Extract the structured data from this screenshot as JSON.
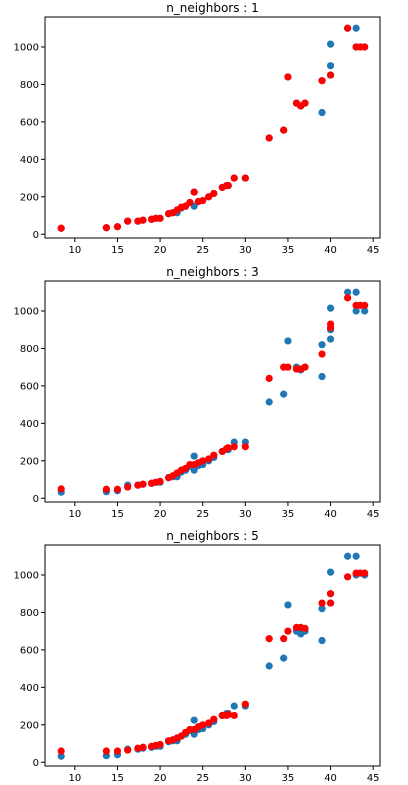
{
  "colors": {
    "actual": "#1f77b4",
    "predicted": "#ff0000"
  },
  "chart_data": [
    {
      "type": "scatter",
      "title": "n_neighbors : 1",
      "xlim": [
        6.5,
        45.8
      ],
      "ylim": [
        -20,
        1160
      ],
      "xticks": [
        10,
        15,
        20,
        25,
        30,
        35,
        40,
        45
      ],
      "yticks": [
        0,
        200,
        400,
        600,
        800,
        1000
      ],
      "series": [
        {
          "color": "#1f77b4",
          "x": [
            8.4,
            13.7,
            15.0,
            16.2,
            17.4,
            18.0,
            19.0,
            19.5,
            20.0,
            21.0,
            21.5,
            22.0,
            22.5,
            23.0,
            23.5,
            24.0,
            24.0,
            24.5,
            25.0,
            25.7,
            26.3,
            27.3,
            27.8,
            28.0,
            28.7,
            30.0,
            32.8,
            34.5,
            35.0,
            36.0,
            36.5,
            37.0,
            39.0,
            39.0,
            40.0,
            40.0,
            40.0,
            42.0,
            43.0,
            43.0,
            43.5,
            44.0
          ],
          "y": [
            32,
            35,
            40,
            70,
            70,
            75,
            80,
            85,
            85,
            110,
            115,
            115,
            140,
            150,
            170,
            150,
            225,
            175,
            180,
            200,
            218,
            250,
            260,
            260,
            300,
            300,
            514,
            556,
            840,
            700,
            685,
            700,
            650,
            820,
            850,
            900,
            1015,
            1100,
            1000,
            1100,
            1000,
            1000
          ]
        },
        {
          "color": "#ff0000",
          "x": [
            8.4,
            13.7,
            15.0,
            16.2,
            17.4,
            18.0,
            19.0,
            19.5,
            20.0,
            21.0,
            21.5,
            22.0,
            22.5,
            23.0,
            23.5,
            24.0,
            24.5,
            25.0,
            25.7,
            26.3,
            27.3,
            27.8,
            28.0,
            28.7,
            30.0,
            32.8,
            34.5,
            35.0,
            36.0,
            36.5,
            37.0,
            39.0,
            40.0,
            42.0,
            43.0,
            43.5,
            44.0
          ],
          "y": [
            32,
            35,
            40,
            70,
            70,
            75,
            80,
            85,
            85,
            110,
            115,
            130,
            145,
            150,
            170,
            225,
            175,
            180,
            200,
            218,
            250,
            260,
            260,
            300,
            300,
            514,
            556,
            840,
            700,
            685,
            700,
            820,
            850,
            1100,
            1000,
            1000,
            1000
          ]
        }
      ]
    },
    {
      "type": "scatter",
      "title": "n_neighbors : 3",
      "xlim": [
        6.5,
        45.8
      ],
      "ylim": [
        -20,
        1160
      ],
      "xticks": [
        10,
        15,
        20,
        25,
        30,
        35,
        40,
        45
      ],
      "yticks": [
        0,
        200,
        400,
        600,
        800,
        1000
      ],
      "series": [
        {
          "color": "#1f77b4",
          "x": [
            8.4,
            13.7,
            15.0,
            16.2,
            17.4,
            18.0,
            19.0,
            19.5,
            20.0,
            21.0,
            21.5,
            22.0,
            22.5,
            23.0,
            23.5,
            24.0,
            24.0,
            24.5,
            25.0,
            25.7,
            26.3,
            27.3,
            27.8,
            28.0,
            28.7,
            30.0,
            32.8,
            34.5,
            35.0,
            36.0,
            36.5,
            37.0,
            39.0,
            39.0,
            40.0,
            40.0,
            40.0,
            42.0,
            43.0,
            43.0,
            44.0
          ],
          "y": [
            32,
            35,
            40,
            70,
            70,
            75,
            80,
            85,
            85,
            110,
            115,
            115,
            140,
            150,
            170,
            150,
            225,
            175,
            180,
            200,
            218,
            250,
            260,
            260,
            300,
            300,
            514,
            556,
            840,
            700,
            685,
            700,
            650,
            820,
            850,
            900,
            1015,
            1100,
            1000,
            1100,
            1000
          ]
        },
        {
          "color": "#ff0000",
          "x": [
            8.4,
            13.7,
            15.0,
            16.2,
            17.4,
            18.0,
            19.0,
            19.5,
            20.0,
            21.0,
            21.5,
            22.0,
            22.5,
            23.0,
            23.5,
            24.0,
            24.5,
            25.0,
            25.7,
            26.3,
            27.3,
            27.8,
            28.0,
            28.7,
            30.0,
            32.8,
            34.5,
            35.0,
            36.0,
            36.5,
            37.0,
            39.0,
            40.0,
            40.0,
            42.0,
            43.0,
            43.5,
            44.0
          ],
          "y": [
            50,
            48,
            48,
            60,
            70,
            75,
            80,
            85,
            90,
            110,
            120,
            135,
            150,
            160,
            180,
            180,
            190,
            200,
            210,
            230,
            250,
            265,
            270,
            275,
            275,
            640,
            700,
            700,
            690,
            690,
            700,
            770,
            910,
            930,
            1070,
            1030,
            1030,
            1030
          ]
        }
      ]
    },
    {
      "type": "scatter",
      "title": "n_neighbors : 5",
      "xlim": [
        6.5,
        45.8
      ],
      "ylim": [
        -20,
        1160
      ],
      "xticks": [
        10,
        15,
        20,
        25,
        30,
        35,
        40,
        45
      ],
      "yticks": [
        0,
        200,
        400,
        600,
        800,
        1000
      ],
      "series": [
        {
          "color": "#1f77b4",
          "x": [
            8.4,
            13.7,
            15.0,
            16.2,
            17.4,
            18.0,
            19.0,
            19.5,
            20.0,
            21.0,
            21.5,
            22.0,
            22.5,
            23.0,
            23.5,
            24.0,
            24.0,
            24.5,
            25.0,
            25.7,
            26.3,
            27.3,
            27.8,
            28.0,
            28.7,
            30.0,
            32.8,
            34.5,
            35.0,
            36.0,
            36.5,
            37.0,
            39.0,
            39.0,
            40.0,
            40.0,
            40.0,
            42.0,
            43.0,
            43.0,
            44.0
          ],
          "y": [
            32,
            35,
            40,
            70,
            70,
            75,
            80,
            85,
            85,
            110,
            115,
            115,
            140,
            150,
            170,
            150,
            225,
            175,
            180,
            200,
            218,
            250,
            260,
            260,
            300,
            300,
            514,
            556,
            840,
            700,
            685,
            700,
            650,
            820,
            850,
            900,
            1015,
            1100,
            1000,
            1100,
            1000
          ]
        },
        {
          "color": "#ff0000",
          "x": [
            8.4,
            13.7,
            15.0,
            16.2,
            17.4,
            18.0,
            19.0,
            19.5,
            20.0,
            21.0,
            21.5,
            22.0,
            22.5,
            23.0,
            23.5,
            24.0,
            24.5,
            25.0,
            25.7,
            26.3,
            27.3,
            27.8,
            28.0,
            28.7,
            30.0,
            32.8,
            34.5,
            35.0,
            36.0,
            36.5,
            37.0,
            39.0,
            40.0,
            40.0,
            42.0,
            43.0,
            43.5,
            44.0
          ],
          "y": [
            60,
            60,
            60,
            65,
            75,
            80,
            85,
            90,
            95,
            115,
            120,
            130,
            140,
            160,
            175,
            175,
            190,
            200,
            210,
            230,
            250,
            250,
            255,
            250,
            310,
            660,
            660,
            700,
            720,
            720,
            715,
            850,
            850,
            900,
            990,
            1010,
            1010,
            1010
          ]
        }
      ]
    }
  ]
}
